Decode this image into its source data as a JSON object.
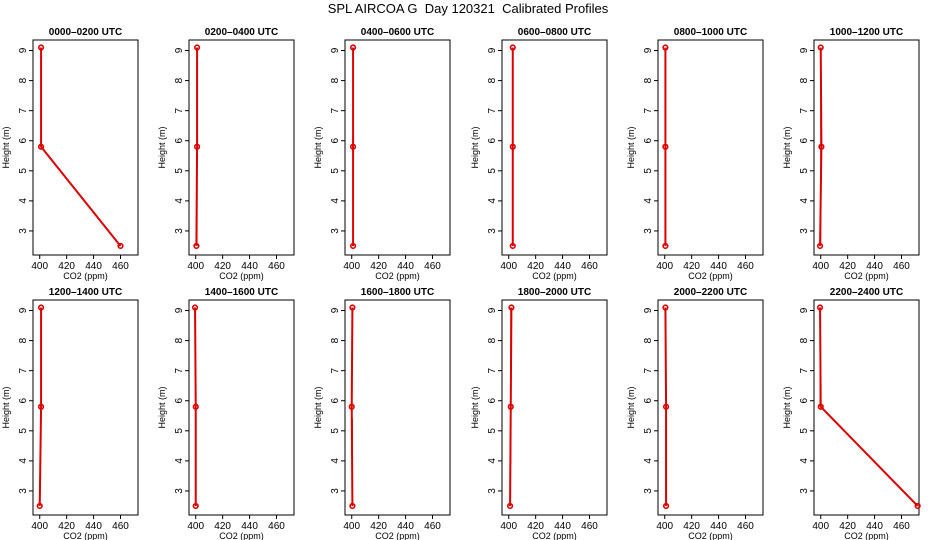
{
  "title": "SPL AIRCOA G  Day 120321  Calibrated Profiles",
  "chart_data": {
    "xlim": [
      395,
      473
    ],
    "ylim": [
      2.2,
      9.35
    ],
    "xticks": [
      400,
      420,
      440,
      460
    ],
    "yticks": [
      3,
      4,
      5,
      6,
      7,
      8,
      9
    ],
    "xlabel": "CO2 (ppm)",
    "ylabel": "Height (m)",
    "line_color": "#dd0000",
    "plots": [
      {
        "type": "line",
        "title": "0000–0200 UTC",
        "x": [
          401,
          401,
          460
        ],
        "y": [
          9.1,
          5.8,
          2.5
        ],
        "ranges": [
          {
            "x": 401,
            "y0": 5.8,
            "y1": 9.1
          }
        ]
      },
      {
        "type": "line",
        "title": "0200–0400 UTC",
        "x": [
          401,
          401,
          400.5
        ],
        "y": [
          9.1,
          5.8,
          2.5
        ],
        "ranges": [
          {
            "x": 401,
            "y0": 2.5,
            "y1": 9.1
          }
        ]
      },
      {
        "type": "line",
        "title": "0400–0600 UTC",
        "x": [
          401,
          401,
          401
        ],
        "y": [
          9.1,
          5.8,
          2.5
        ],
        "ranges": [
          {
            "x": 401,
            "y0": 8.4,
            "y1": 9.1
          },
          {
            "x": 401,
            "y0": 2.5,
            "y1": 4.1
          }
        ]
      },
      {
        "type": "line",
        "title": "0600–0800 UTC",
        "x": [
          403,
          403,
          403
        ],
        "y": [
          9.1,
          5.8,
          2.5
        ],
        "ranges": [
          {
            "x": 403,
            "y0": 2.5,
            "y1": 9.1
          }
        ]
      },
      {
        "type": "line",
        "title": "0800–1000 UTC",
        "x": [
          400.5,
          400.5,
          400.5
        ],
        "y": [
          9.1,
          5.8,
          2.5
        ],
        "ranges": [
          {
            "x": 400.5,
            "y0": 2.5,
            "y1": 9.1
          }
        ]
      },
      {
        "type": "line",
        "title": "1000–1200 UTC",
        "x": [
          400,
          400.5,
          399.5
        ],
        "y": [
          9.1,
          5.8,
          2.5
        ],
        "ranges": [
          {
            "x": 400,
            "y0": 2.6,
            "y1": 9.1
          }
        ]
      },
      {
        "type": "line",
        "title": "1200–1400 UTC",
        "x": [
          401,
          401,
          400
        ],
        "y": [
          9.1,
          5.8,
          2.5
        ],
        "ranges": [
          {
            "x": 401,
            "y0": 8.8,
            "y1": 9.1
          }
        ]
      },
      {
        "type": "line",
        "title": "1400–1600 UTC",
        "x": [
          399.5,
          400,
          400
        ],
        "y": [
          9.1,
          5.8,
          2.5
        ],
        "ranges": [
          {
            "x": 399.5,
            "y0": 8.1,
            "y1": 9.1
          },
          {
            "x": 400,
            "y0": 2.5,
            "y1": 5.6
          }
        ]
      },
      {
        "type": "line",
        "title": "1600–1800 UTC",
        "x": [
          400.5,
          400,
          400.5
        ],
        "y": [
          9.1,
          5.8,
          2.5
        ],
        "ranges": [
          {
            "x": 400.5,
            "y0": 2.5,
            "y1": 5.4
          }
        ]
      },
      {
        "type": "line",
        "title": "1800–2000 UTC",
        "x": [
          402,
          401.5,
          401
        ],
        "y": [
          9.1,
          5.8,
          2.5
        ],
        "ranges": [
          {
            "x": 401.5,
            "y0": 3.9,
            "y1": 9.1
          }
        ]
      },
      {
        "type": "line",
        "title": "2000–2200 UTC",
        "x": [
          400.5,
          401,
          401
        ],
        "y": [
          9.1,
          5.8,
          2.5
        ],
        "ranges": [
          {
            "x": 401,
            "y0": 3.4,
            "y1": 5.8
          }
        ]
      },
      {
        "type": "line",
        "title": "2200–2400 UTC",
        "x": [
          399.5,
          400,
          472
        ],
        "y": [
          9.1,
          5.8,
          2.5
        ],
        "ranges": [
          {
            "x": 399.5,
            "y0": 5.8,
            "y1": 9.1
          }
        ]
      }
    ]
  }
}
